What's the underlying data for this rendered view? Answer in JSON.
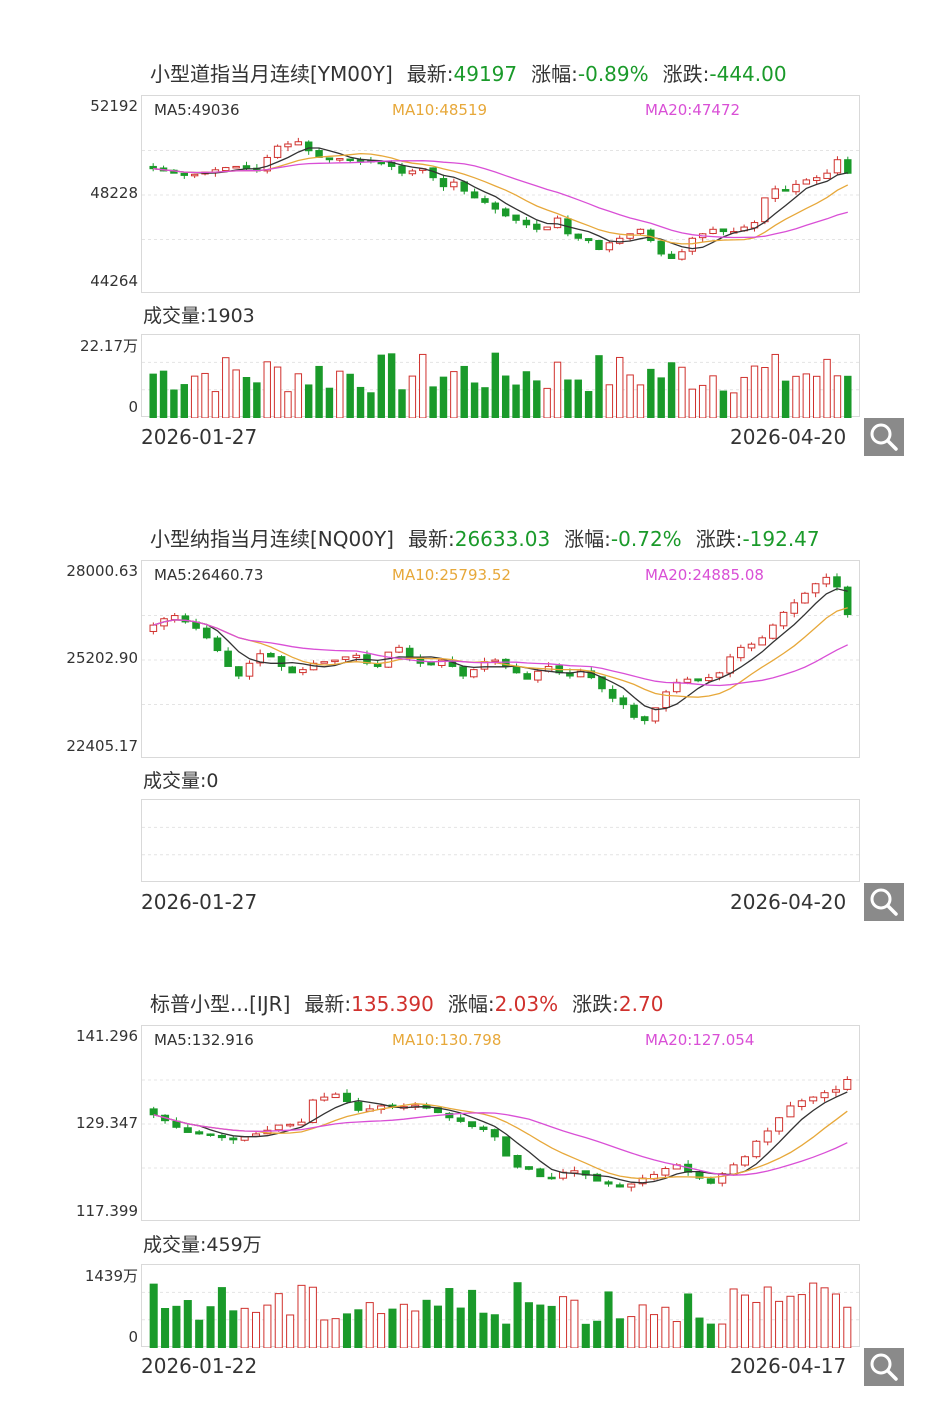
{
  "panels": [
    {
      "title": "小型道指当月连续[YM00Y]",
      "latest_label": "最新:",
      "latest": "49197",
      "change_pct_label": "涨幅:",
      "change_pct": "-0.89%",
      "change_label": "涨跌:",
      "change": "-444.00",
      "direction": "down",
      "y_labels": [
        "52192",
        "48228",
        "44264"
      ],
      "ma5": "MA5:49036",
      "ma10": "MA10:48519",
      "ma20": "MA20:47472",
      "volume_label": "成交量:1903",
      "vol_labels": [
        "22.17万",
        "0"
      ],
      "date_start": "2026-01-27",
      "date_end": "2026-04-20"
    },
    {
      "title": "小型纳指当月连续[NQ00Y]",
      "latest_label": "最新:",
      "latest": "26633.03",
      "change_pct_label": "涨幅:",
      "change_pct": "-0.72%",
      "change_label": "涨跌:",
      "change": "-192.47",
      "direction": "down",
      "y_labels": [
        "28000.63",
        "25202.90",
        "22405.17"
      ],
      "ma5": "MA5:26460.73",
      "ma10": "MA10:25793.52",
      "ma20": "MA20:24885.08",
      "volume_label": "成交量:0",
      "vol_labels": [
        "",
        ""
      ],
      "date_start": "2026-01-27",
      "date_end": "2026-04-20"
    },
    {
      "title": "标普小型...[IJR]",
      "latest_label": "最新:",
      "latest": "135.390",
      "change_pct_label": "涨幅:",
      "change_pct": "2.03%",
      "change_label": "涨跌:",
      "change": "2.70",
      "direction": "up",
      "y_labels": [
        "141.296",
        "129.347",
        "117.399"
      ],
      "ma5": "MA5:132.916",
      "ma10": "MA10:130.798",
      "ma20": "MA20:127.054",
      "volume_label": "成交量:459万",
      "vol_labels": [
        "1439万",
        "0"
      ],
      "date_start": "2026-01-22",
      "date_end": "2026-04-17"
    }
  ],
  "colors": {
    "up": "#d0312d",
    "down": "#1a9a2a",
    "ma5": "#333333",
    "ma10": "#e7a83a",
    "ma20": "#d94fd6"
  },
  "icons": {
    "zoom": "magnifier-icon"
  },
  "chart_data": [
    {
      "type": "candlestick",
      "title": "小型道指当月连续[YM00Y]",
      "ylim": [
        44264,
        52192
      ],
      "closes": [
        49400,
        49300,
        49200,
        49100,
        49150,
        49250,
        49350,
        49450,
        49500,
        49400,
        49300,
        49900,
        50400,
        50500,
        50600,
        50200,
        49900,
        49800,
        49850,
        49800,
        49750,
        49700,
        49650,
        49500,
        49200,
        49300,
        49400,
        49000,
        48600,
        48800,
        48400,
        48100,
        47900,
        47600,
        47300,
        47100,
        46900,
        46700,
        46800,
        47200,
        46500,
        46300,
        46200,
        45800,
        46100,
        46300,
        46500,
        46700,
        46200,
        45600,
        45400,
        45700,
        46300,
        46500,
        46700,
        46600,
        46600,
        46800,
        47000,
        48100,
        48500,
        48400,
        48700,
        48900,
        49000,
        49200,
        49800,
        49197
      ],
      "ma5": 49036,
      "ma10": 48519,
      "ma20": 47472,
      "volume_ylim": [
        0,
        221700
      ],
      "x_range": [
        "2026-01-27",
        "2026-04-20"
      ]
    },
    {
      "type": "candlestick",
      "title": "小型纳指当月连续[NQ00Y]",
      "ylim": [
        22405.17,
        28000.63
      ],
      "closes": [
        26300,
        26500,
        26600,
        26400,
        26200,
        25900,
        25500,
        25000,
        24700,
        25100,
        25400,
        25300,
        25000,
        24800,
        24900,
        25100,
        25150,
        25200,
        25300,
        25350,
        25100,
        25000,
        25450,
        25600,
        25300,
        25100,
        25050,
        25200,
        25000,
        24700,
        24900,
        25150,
        25200,
        25000,
        24800,
        24600,
        24850,
        25000,
        24800,
        24700,
        24850,
        24650,
        24300,
        24000,
        23800,
        23400,
        23300,
        23700,
        24200,
        24500,
        24600,
        24550,
        24650,
        24800,
        25300,
        25600,
        25700,
        25900,
        26300,
        26700,
        27000,
        27300,
        27600,
        27800,
        27500,
        26633.03
      ],
      "ma5": 26460.73,
      "ma10": 25793.52,
      "ma20": 24885.08,
      "volume_ylim": [
        0,
        0
      ],
      "x_range": [
        "2026-01-27",
        "2026-04-20"
      ]
    },
    {
      "type": "candlestick",
      "title": "标普小型...[IJR]",
      "ylim": [
        117.399,
        141.296
      ],
      "closes": [
        130.6,
        129.8,
        128.9,
        128.2,
        128.0,
        127.8,
        127.5,
        127.2,
        127.6,
        128.0,
        128.5,
        129.2,
        129.3,
        129.6,
        132.6,
        133.0,
        133.4,
        132.4,
        131.2,
        131.4,
        131.8,
        131.6,
        131.7,
        131.9,
        131.5,
        130.9,
        130.2,
        129.7,
        129.0,
        128.6,
        127.6,
        125.0,
        123.5,
        123.2,
        122.2,
        122.0,
        122.8,
        123.0,
        122.4,
        121.6,
        121.2,
        120.8,
        121.2,
        122.0,
        122.5,
        123.3,
        123.8,
        122.8,
        122.0,
        121.3,
        122.6,
        123.8,
        124.9,
        127.0,
        128.4,
        130.2,
        131.8,
        132.5,
        133.0,
        133.6,
        134.0,
        135.39
      ],
      "ma5": 132.916,
      "ma10": 130.798,
      "ma20": 127.054,
      "volume_ylim": [
        0,
        14390000
      ],
      "x_range": [
        "2026-01-22",
        "2026-04-17"
      ]
    }
  ]
}
